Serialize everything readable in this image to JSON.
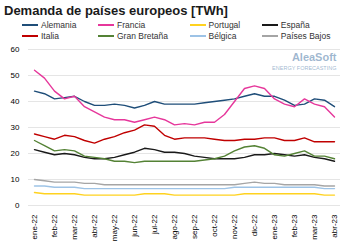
{
  "chart_data": {
    "type": "line",
    "title": "Demanda de países europeos [TWh]",
    "annotations": [
      "AleaSoft",
      "ENERGY FORECASTING"
    ],
    "categories": [
      "ene-22",
      null,
      "feb-22",
      null,
      "mar-22",
      null,
      "abr-22",
      null,
      "may-22",
      null,
      "jun-22",
      null,
      "jul-22",
      null,
      "ago-22",
      null,
      "sep-22",
      null,
      "oct-22",
      null,
      "nov-22",
      null,
      "dic-22",
      null,
      "ene-23",
      null,
      "feb-23",
      null,
      "mar-23",
      null,
      "abr-23"
    ],
    "series": [
      {
        "name": "Alemania",
        "color": "#1f4e79",
        "values": [
          44,
          43,
          41,
          41.5,
          42,
          40,
          38.5,
          38.5,
          39,
          38.5,
          37.5,
          38.5,
          40,
          39,
          39,
          39,
          39,
          39.5,
          40,
          40.5,
          41,
          42,
          43,
          42,
          42,
          40.5,
          38.5,
          39,
          41,
          40.5,
          38
        ]
      },
      {
        "name": "Francia",
        "color": "#e6379b",
        "values": [
          52,
          49,
          44,
          41,
          42,
          38,
          36,
          34,
          33,
          33,
          32,
          33,
          34,
          33,
          31,
          31.5,
          31,
          32,
          32,
          35,
          40,
          45,
          46,
          45,
          41,
          39,
          38,
          41,
          39,
          38,
          34
        ]
      },
      {
        "name": "Portugal",
        "color": "#ffd21f",
        "values": [
          5,
          4.5,
          4.5,
          4.5,
          4.5,
          4,
          4,
          4,
          4,
          4,
          4,
          4.5,
          4.5,
          4.5,
          4,
          4,
          4,
          4,
          4,
          4,
          4,
          4.5,
          4.5,
          4.5,
          4.5,
          4.5,
          4.5,
          4.5,
          4.5,
          4,
          4
        ]
      },
      {
        "name": "España",
        "color": "#1a1a1a",
        "values": [
          21.5,
          20.5,
          19.5,
          20,
          19.5,
          18.5,
          18,
          18,
          18.5,
          19.5,
          20.5,
          22,
          21.5,
          20.5,
          20.5,
          20,
          19,
          18.5,
          18,
          18,
          18,
          18.5,
          19.5,
          19.5,
          20,
          19.5,
          19,
          19.5,
          18.5,
          18,
          17
        ]
      },
      {
        "name": "Italia",
        "color": "#c00000",
        "values": [
          27.5,
          26.5,
          25.5,
          27,
          26.5,
          25,
          24,
          25.5,
          26.5,
          28,
          29,
          31,
          30.5,
          27,
          25.5,
          26,
          26,
          26,
          25.5,
          25,
          25,
          25.5,
          25.5,
          26,
          26,
          25,
          25,
          26,
          24.5,
          24.5,
          24.5
        ]
      },
      {
        "name": "Gran Bretaña",
        "color": "#548235",
        "values": [
          25,
          23,
          21,
          21.5,
          21,
          19,
          18.5,
          18,
          17,
          17,
          16.5,
          17,
          17,
          17,
          17,
          17,
          17,
          17.5,
          18,
          19,
          21,
          22.5,
          23,
          22,
          19.5,
          19,
          20,
          21,
          19,
          19,
          18
        ]
      },
      {
        "name": "Bélgica",
        "color": "#9dc3e6",
        "values": [
          7.5,
          7.5,
          7,
          7,
          7,
          6.5,
          6.5,
          6.5,
          6.5,
          6.5,
          6.5,
          6.5,
          6.5,
          6.5,
          6.5,
          6.5,
          6.5,
          6.5,
          6.5,
          6.5,
          7,
          7,
          7,
          7,
          7,
          7,
          7,
          7,
          7,
          6.5,
          6.5
        ]
      },
      {
        "name": "Países Bajos",
        "color": "#a5a5a5",
        "values": [
          10,
          9.5,
          9,
          9,
          9,
          8.5,
          8.5,
          8,
          8,
          8,
          8,
          8,
          8,
          8,
          8,
          8,
          8,
          8,
          8,
          8,
          8,
          8.5,
          9,
          8.5,
          8.5,
          8,
          8,
          8,
          8,
          7.5,
          7.5
        ]
      }
    ],
    "ylim": [
      0,
      60
    ],
    "yticks": [
      0,
      10,
      20,
      30,
      40,
      50,
      60
    ],
    "grid": true
  }
}
